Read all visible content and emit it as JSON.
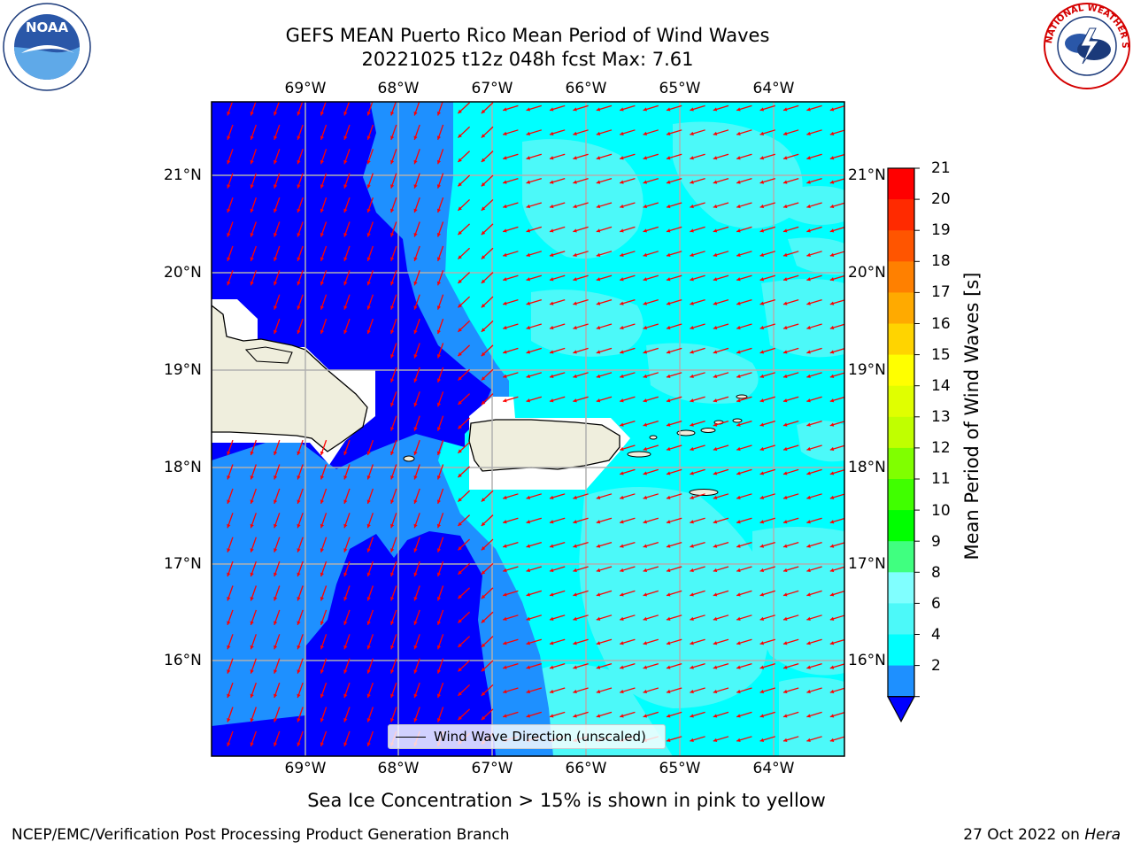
{
  "title": {
    "line1": "GEFS MEAN Puerto Rico Mean Period of Wind Waves",
    "line2": "20221025 t12z 048h fcst   Max: 7.61"
  },
  "logos": {
    "left": "NOAA",
    "right": "NATIONAL WEATHER SERVICE"
  },
  "map": {
    "lon_ticks": [
      "69°W",
      "68°W",
      "67°W",
      "66°W",
      "65°W",
      "64°W"
    ],
    "lat_ticks": [
      "21°N",
      "20°N",
      "19°N",
      "18°N",
      "17°N",
      "16°N"
    ],
    "colors": {
      "band_2_4": "#0000ff",
      "band_4_6": "#1e90ff",
      "band_6_8": "#00ffff",
      "band_8_9": "#4cf9f9",
      "land": "#efeedd",
      "arrow": "#ff0000",
      "grid": "#b0b0b0"
    }
  },
  "legend": {
    "label": "Wind Wave Direction (unscaled)"
  },
  "colorbar": {
    "label": "Mean Period of Wind Waves [s]",
    "ticks": [
      "21",
      "20",
      "19",
      "18",
      "17",
      "16",
      "15",
      "14",
      "13",
      "12",
      "11",
      "10",
      "9",
      "8",
      "6",
      "4",
      "2"
    ],
    "colors": [
      "#ff0000",
      "#ff2a00",
      "#ff5500",
      "#ff8000",
      "#ffaa00",
      "#ffd400",
      "#ffff00",
      "#e0ff00",
      "#c0ff00",
      "#80ff00",
      "#40ff00",
      "#00ff00",
      "#40ff80",
      "#80ffff",
      "#4cf9f9",
      "#00ffff",
      "#1e90ff"
    ],
    "under_color": "#0000ff"
  },
  "footer": {
    "note": "Sea Ice Concentration > 15% is shown in pink to yellow",
    "left": "NCEP/EMC/Verification Post Processing Product Generation Branch",
    "date": "27 Oct 2022 on ",
    "host": "Hera"
  }
}
